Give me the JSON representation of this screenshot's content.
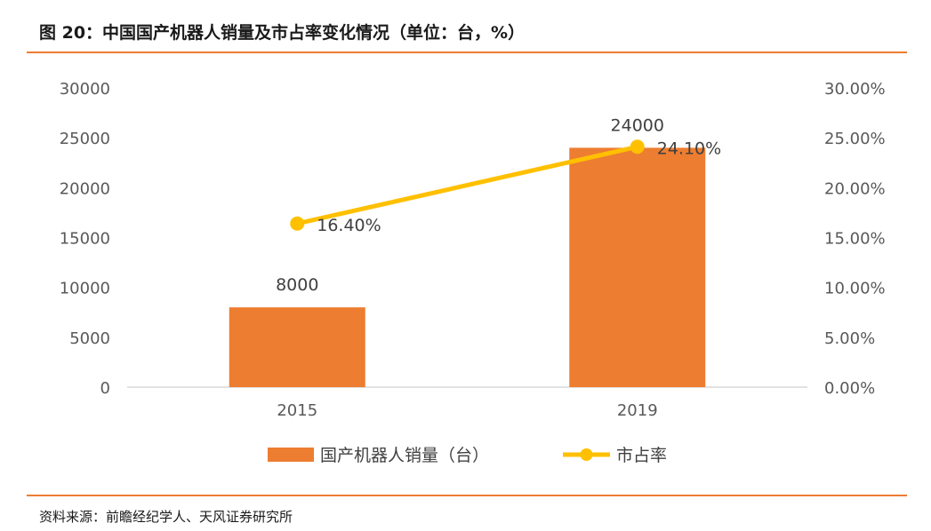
{
  "header": {
    "title": "图 20：中国国产机器人销量及市占率变化情况（单位：台，%）"
  },
  "footer": {
    "source": "资料来源：前瞻经纪学人、天风证券研究所"
  },
  "colors": {
    "accent": "#ED7D31",
    "bar": "#ED7D31",
    "line": "#FFC000"
  },
  "chart_data": {
    "type": "bar",
    "categories": [
      "2015",
      "2019"
    ],
    "series": [
      {
        "name": "国产机器人销量（台）",
        "type": "bar",
        "axis": "left",
        "values": [
          8000,
          24000
        ],
        "labels": [
          "8000",
          "24000"
        ]
      },
      {
        "name": "市占率",
        "type": "line",
        "axis": "right",
        "values": [
          16.4,
          24.1
        ],
        "labels": [
          "16.40%",
          "24.10%"
        ]
      }
    ],
    "y_left": {
      "range": [
        0,
        30000
      ],
      "ticks": [
        "0",
        "5000",
        "10000",
        "15000",
        "20000",
        "25000",
        "30000"
      ]
    },
    "y_right": {
      "range": [
        0,
        30
      ],
      "ticks": [
        "0.00%",
        "5.00%",
        "10.00%",
        "15.00%",
        "20.00%",
        "25.00%",
        "30.00%"
      ]
    },
    "legend": {
      "position": "bottom",
      "items": [
        "国产机器人销量（台）",
        "市占率"
      ]
    },
    "grid": false
  }
}
